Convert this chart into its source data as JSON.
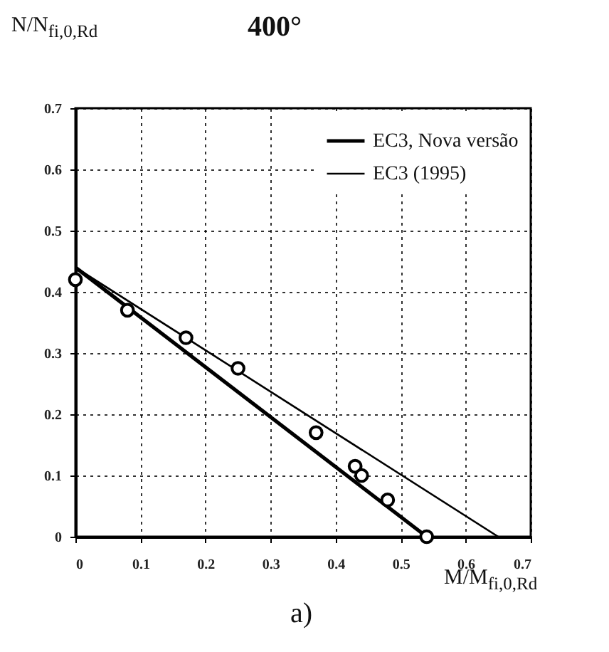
{
  "chart_data": {
    "type": "line",
    "title": "400°",
    "xlabel": "M/M$_{fi,0,Rd}$",
    "ylabel": "N/N$_{fi,0,Rd}$",
    "annotations": [
      "a)"
    ],
    "xlim": [
      0,
      0.7
    ],
    "xticks": [
      0,
      0.1,
      0.2,
      0.3,
      0.4,
      0.5,
      0.6,
      0.7
    ],
    "ylim": [
      0,
      0.7
    ],
    "yticks": [
      0,
      0.1,
      0.2,
      0.3,
      0.4,
      0.5,
      0.6,
      0.7
    ],
    "grid": true,
    "legend": "top right",
    "series": [
      {
        "type": "scatter",
        "marker": "circle",
        "color": "#000000",
        "x": [
          0,
          0.08,
          0.17,
          0.25,
          0.37,
          0.43,
          0.44,
          0.48,
          0.54
        ],
        "values": [
          0.42,
          0.37,
          0.325,
          0.275,
          0.17,
          0.115,
          0.1,
          0.06,
          0
        ]
      },
      {
        "name": "EC3, Nova versão",
        "color": "#000000",
        "x": [
          0,
          0.54
        ],
        "values": [
          0.44,
          0
        ]
      },
      {
        "name": "EC3 (1995)",
        "color": "#000000",
        "x": [
          0,
          0.65
        ],
        "values": [
          0.44,
          0
        ]
      }
    ]
  }
}
